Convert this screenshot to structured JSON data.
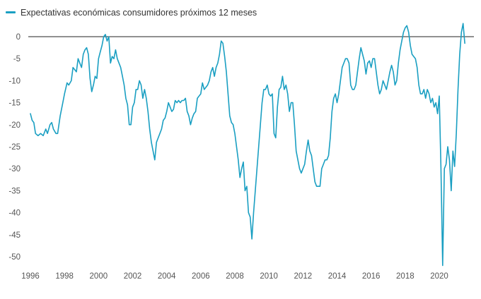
{
  "chart_data": {
    "type": "line",
    "title": "",
    "xlabel": "",
    "ylabel": "",
    "legend_position": "top-left",
    "xlim": [
      1996,
      2022
    ],
    "ylim": [
      -52,
      4
    ],
    "grid": false,
    "zero_line": true,
    "x_ticks": [
      1996,
      1998,
      2000,
      2002,
      2004,
      2006,
      2008,
      2010,
      2012,
      2014,
      2016,
      2018,
      2020
    ],
    "y_ticks": [
      0,
      -5,
      -10,
      -15,
      -20,
      -25,
      -30,
      -35,
      -40,
      -45,
      -50
    ],
    "series": [
      {
        "name": "Expectativas económicas consumidores próximos 12 meses",
        "color": "#1a9fc2",
        "points": [
          [
            1996.0,
            -17.5
          ],
          [
            1996.1,
            -19
          ],
          [
            1996.2,
            -19.5
          ],
          [
            1996.3,
            -22
          ],
          [
            1996.45,
            -22.5
          ],
          [
            1996.6,
            -22
          ],
          [
            1996.75,
            -22.5
          ],
          [
            1996.9,
            -21
          ],
          [
            1997.0,
            -22
          ],
          [
            1997.15,
            -20
          ],
          [
            1997.25,
            -19.5
          ],
          [
            1997.35,
            -21
          ],
          [
            1997.5,
            -22
          ],
          [
            1997.6,
            -22
          ],
          [
            1997.75,
            -18
          ],
          [
            1997.9,
            -15
          ],
          [
            1998.0,
            -13
          ],
          [
            1998.15,
            -10.5
          ],
          [
            1998.25,
            -11
          ],
          [
            1998.4,
            -10
          ],
          [
            1998.5,
            -7
          ],
          [
            1998.6,
            -7.5
          ],
          [
            1998.7,
            -8
          ],
          [
            1998.8,
            -5
          ],
          [
            1998.9,
            -6
          ],
          [
            1999.0,
            -7
          ],
          [
            1999.1,
            -4
          ],
          [
            1999.2,
            -3
          ],
          [
            1999.3,
            -2.5
          ],
          [
            1999.4,
            -4
          ],
          [
            1999.5,
            -9.5
          ],
          [
            1999.6,
            -12.5
          ],
          [
            1999.7,
            -11
          ],
          [
            1999.8,
            -9
          ],
          [
            1999.9,
            -9.5
          ],
          [
            2000.0,
            -5
          ],
          [
            2000.1,
            -3.5
          ],
          [
            2000.2,
            -2
          ],
          [
            2000.3,
            0
          ],
          [
            2000.4,
            0.5
          ],
          [
            2000.5,
            -1
          ],
          [
            2000.6,
            0
          ],
          [
            2000.7,
            -6
          ],
          [
            2000.8,
            -4.5
          ],
          [
            2000.9,
            -5
          ],
          [
            2001.0,
            -3
          ],
          [
            2001.1,
            -5
          ],
          [
            2001.2,
            -6
          ],
          [
            2001.3,
            -7
          ],
          [
            2001.4,
            -9
          ],
          [
            2001.5,
            -11
          ],
          [
            2001.6,
            -14
          ],
          [
            2001.7,
            -15.5
          ],
          [
            2001.8,
            -20
          ],
          [
            2001.9,
            -20
          ],
          [
            2002.0,
            -16
          ],
          [
            2002.1,
            -15
          ],
          [
            2002.2,
            -12
          ],
          [
            2002.3,
            -12
          ],
          [
            2002.4,
            -10
          ],
          [
            2002.5,
            -11
          ],
          [
            2002.6,
            -14
          ],
          [
            2002.7,
            -12
          ],
          [
            2002.8,
            -14
          ],
          [
            2002.9,
            -17
          ],
          [
            2003.0,
            -21
          ],
          [
            2003.1,
            -24
          ],
          [
            2003.2,
            -26
          ],
          [
            2003.3,
            -28
          ],
          [
            2003.4,
            -24
          ],
          [
            2003.5,
            -23
          ],
          [
            2003.6,
            -22
          ],
          [
            2003.7,
            -21
          ],
          [
            2003.8,
            -19
          ],
          [
            2003.9,
            -18.5
          ],
          [
            2004.0,
            -17
          ],
          [
            2004.1,
            -15
          ],
          [
            2004.2,
            -16
          ],
          [
            2004.3,
            -17
          ],
          [
            2004.4,
            -16.5
          ],
          [
            2004.5,
            -14.5
          ],
          [
            2004.6,
            -15
          ],
          [
            2004.7,
            -14.5
          ],
          [
            2004.8,
            -15
          ],
          [
            2004.9,
            -14.5
          ],
          [
            2005.0,
            -14.5
          ],
          [
            2005.1,
            -14
          ],
          [
            2005.2,
            -17
          ],
          [
            2005.3,
            -18
          ],
          [
            2005.4,
            -20
          ],
          [
            2005.5,
            -18.5
          ],
          [
            2005.6,
            -17.5
          ],
          [
            2005.7,
            -17
          ],
          [
            2005.8,
            -14
          ],
          [
            2005.9,
            -13.5
          ],
          [
            2006.0,
            -13
          ],
          [
            2006.1,
            -10.5
          ],
          [
            2006.2,
            -12
          ],
          [
            2006.3,
            -11.5
          ],
          [
            2006.4,
            -11
          ],
          [
            2006.5,
            -10
          ],
          [
            2006.6,
            -8
          ],
          [
            2006.7,
            -7
          ],
          [
            2006.8,
            -9
          ],
          [
            2006.9,
            -7
          ],
          [
            2007.0,
            -6
          ],
          [
            2007.1,
            -4
          ],
          [
            2007.2,
            -1
          ],
          [
            2007.3,
            -1.5
          ],
          [
            2007.4,
            -4.5
          ],
          [
            2007.5,
            -8
          ],
          [
            2007.6,
            -13
          ],
          [
            2007.7,
            -18
          ],
          [
            2007.8,
            -19.5
          ],
          [
            2007.9,
            -20
          ],
          [
            2008.0,
            -22
          ],
          [
            2008.1,
            -25
          ],
          [
            2008.2,
            -28
          ],
          [
            2008.3,
            -32
          ],
          [
            2008.4,
            -30
          ],
          [
            2008.5,
            -28.5
          ],
          [
            2008.6,
            -35
          ],
          [
            2008.7,
            -34
          ],
          [
            2008.8,
            -40
          ],
          [
            2008.9,
            -41
          ],
          [
            2009.0,
            -46
          ],
          [
            2009.1,
            -40
          ],
          [
            2009.2,
            -35
          ],
          [
            2009.3,
            -30
          ],
          [
            2009.4,
            -25
          ],
          [
            2009.5,
            -20
          ],
          [
            2009.6,
            -15
          ],
          [
            2009.7,
            -12
          ],
          [
            2009.8,
            -12
          ],
          [
            2009.9,
            -11
          ],
          [
            2010.0,
            -13
          ],
          [
            2010.1,
            -13.5
          ],
          [
            2010.2,
            -13
          ],
          [
            2010.3,
            -22
          ],
          [
            2010.4,
            -23
          ],
          [
            2010.5,
            -16
          ],
          [
            2010.6,
            -12
          ],
          [
            2010.7,
            -11.5
          ],
          [
            2010.8,
            -9
          ],
          [
            2010.9,
            -12
          ],
          [
            2011.0,
            -11
          ],
          [
            2011.1,
            -13
          ],
          [
            2011.2,
            -17
          ],
          [
            2011.3,
            -15
          ],
          [
            2011.4,
            -15
          ],
          [
            2011.5,
            -20
          ],
          [
            2011.6,
            -26
          ],
          [
            2011.7,
            -28
          ],
          [
            2011.8,
            -30
          ],
          [
            2011.9,
            -31
          ],
          [
            2012.0,
            -30
          ],
          [
            2012.1,
            -29
          ],
          [
            2012.2,
            -26
          ],
          [
            2012.3,
            -23.5
          ],
          [
            2012.4,
            -26
          ],
          [
            2012.5,
            -27
          ],
          [
            2012.6,
            -30
          ],
          [
            2012.7,
            -33
          ],
          [
            2012.8,
            -34
          ],
          [
            2012.9,
            -34
          ],
          [
            2013.0,
            -34
          ],
          [
            2013.1,
            -30
          ],
          [
            2013.2,
            -29
          ],
          [
            2013.3,
            -28
          ],
          [
            2013.4,
            -28
          ],
          [
            2013.5,
            -27
          ],
          [
            2013.6,
            -23
          ],
          [
            2013.7,
            -17
          ],
          [
            2013.8,
            -14
          ],
          [
            2013.9,
            -13
          ],
          [
            2014.0,
            -15
          ],
          [
            2014.1,
            -13
          ],
          [
            2014.2,
            -10
          ],
          [
            2014.3,
            -7
          ],
          [
            2014.4,
            -6
          ],
          [
            2014.5,
            -5
          ],
          [
            2014.6,
            -5
          ],
          [
            2014.7,
            -6
          ],
          [
            2014.8,
            -11
          ],
          [
            2014.9,
            -12
          ],
          [
            2015.0,
            -12
          ],
          [
            2015.1,
            -11
          ],
          [
            2015.2,
            -8
          ],
          [
            2015.3,
            -5
          ],
          [
            2015.4,
            -2.5
          ],
          [
            2015.5,
            -4
          ],
          [
            2015.6,
            -5.5
          ],
          [
            2015.7,
            -8.5
          ],
          [
            2015.8,
            -6
          ],
          [
            2015.9,
            -5.5
          ],
          [
            2016.0,
            -7
          ],
          [
            2016.1,
            -5
          ],
          [
            2016.2,
            -5
          ],
          [
            2016.3,
            -8
          ],
          [
            2016.4,
            -11
          ],
          [
            2016.5,
            -13
          ],
          [
            2016.6,
            -12
          ],
          [
            2016.7,
            -10
          ],
          [
            2016.8,
            -11
          ],
          [
            2016.9,
            -12
          ],
          [
            2017.0,
            -10
          ],
          [
            2017.1,
            -8
          ],
          [
            2017.2,
            -6.5
          ],
          [
            2017.3,
            -8
          ],
          [
            2017.4,
            -11
          ],
          [
            2017.5,
            -10
          ],
          [
            2017.6,
            -6
          ],
          [
            2017.7,
            -3
          ],
          [
            2017.8,
            -1
          ],
          [
            2017.9,
            1
          ],
          [
            2018.0,
            2
          ],
          [
            2018.1,
            2.5
          ],
          [
            2018.2,
            1
          ],
          [
            2018.3,
            -2
          ],
          [
            2018.4,
            -4
          ],
          [
            2018.5,
            -4.5
          ],
          [
            2018.6,
            -5
          ],
          [
            2018.7,
            -7
          ],
          [
            2018.8,
            -11
          ],
          [
            2018.9,
            -13
          ],
          [
            2019.0,
            -13
          ],
          [
            2019.1,
            -12
          ],
          [
            2019.2,
            -14
          ],
          [
            2019.3,
            -12
          ],
          [
            2019.4,
            -13
          ],
          [
            2019.5,
            -15
          ],
          [
            2019.6,
            -14
          ],
          [
            2019.7,
            -16
          ],
          [
            2019.8,
            -15
          ],
          [
            2019.9,
            -17.5
          ],
          [
            2020.0,
            -13.5
          ],
          [
            2020.1,
            -30
          ],
          [
            2020.2,
            -52
          ],
          [
            2020.3,
            -30
          ],
          [
            2020.4,
            -29
          ],
          [
            2020.5,
            -25
          ],
          [
            2020.6,
            -28
          ],
          [
            2020.7,
            -35
          ],
          [
            2020.8,
            -26
          ],
          [
            2020.9,
            -29.5
          ],
          [
            2021.0,
            -22
          ],
          [
            2021.1,
            -12
          ],
          [
            2021.2,
            -4
          ],
          [
            2021.3,
            1
          ],
          [
            2021.4,
            3
          ],
          [
            2021.5,
            -1.5
          ]
        ]
      }
    ]
  }
}
